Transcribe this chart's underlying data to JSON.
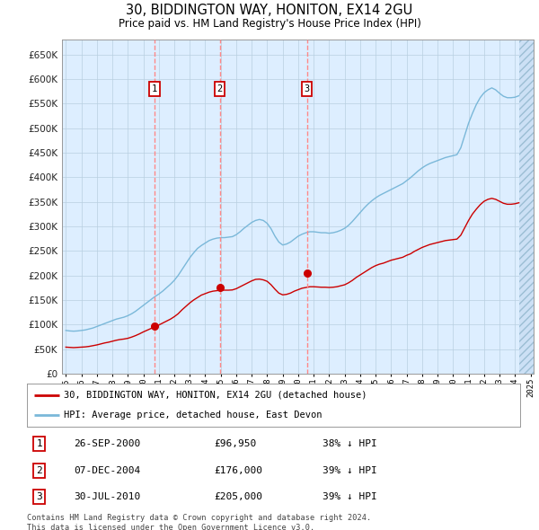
{
  "title": "30, BIDDINGTON WAY, HONITON, EX14 2GU",
  "subtitle": "Price paid vs. HM Land Registry's House Price Index (HPI)",
  "ylim": [
    0,
    680000
  ],
  "yticks": [
    0,
    50000,
    100000,
    150000,
    200000,
    250000,
    300000,
    350000,
    400000,
    450000,
    500000,
    550000,
    600000,
    650000
  ],
  "hpi_color": "#7ab8d9",
  "price_color": "#cc0000",
  "grid_color": "#b8cfe0",
  "bg_color": "#ddeeff",
  "transactions": [
    {
      "num": 1,
      "date_str": "26-SEP-2000",
      "price": 96950,
      "year": 2000.73,
      "label": "26-SEP-2000",
      "price_label": "£96,950",
      "pct": "38% ↓ HPI"
    },
    {
      "num": 2,
      "date_str": "07-DEC-2004",
      "price": 176000,
      "year": 2004.93,
      "label": "07-DEC-2004",
      "price_label": "£176,000",
      "pct": "39% ↓ HPI"
    },
    {
      "num": 3,
      "date_str": "30-JUL-2010",
      "price": 205000,
      "year": 2010.57,
      "label": "30-JUL-2010",
      "price_label": "£205,000",
      "pct": "39% ↓ HPI"
    }
  ],
  "hpi_x": [
    1995.0,
    1995.25,
    1995.5,
    1995.75,
    1996.0,
    1996.25,
    1996.5,
    1996.75,
    1997.0,
    1997.25,
    1997.5,
    1997.75,
    1998.0,
    1998.25,
    1998.5,
    1998.75,
    1999.0,
    1999.25,
    1999.5,
    1999.75,
    2000.0,
    2000.25,
    2000.5,
    2000.75,
    2001.0,
    2001.25,
    2001.5,
    2001.75,
    2002.0,
    2002.25,
    2002.5,
    2002.75,
    2003.0,
    2003.25,
    2003.5,
    2003.75,
    2004.0,
    2004.25,
    2004.5,
    2004.75,
    2005.0,
    2005.25,
    2005.5,
    2005.75,
    2006.0,
    2006.25,
    2006.5,
    2006.75,
    2007.0,
    2007.25,
    2007.5,
    2007.75,
    2008.0,
    2008.25,
    2008.5,
    2008.75,
    2009.0,
    2009.25,
    2009.5,
    2009.75,
    2010.0,
    2010.25,
    2010.5,
    2010.75,
    2011.0,
    2011.25,
    2011.5,
    2011.75,
    2012.0,
    2012.25,
    2012.5,
    2012.75,
    2013.0,
    2013.25,
    2013.5,
    2013.75,
    2014.0,
    2014.25,
    2014.5,
    2014.75,
    2015.0,
    2015.25,
    2015.5,
    2015.75,
    2016.0,
    2016.25,
    2016.5,
    2016.75,
    2017.0,
    2017.25,
    2017.5,
    2017.75,
    2018.0,
    2018.25,
    2018.5,
    2018.75,
    2019.0,
    2019.25,
    2019.5,
    2019.75,
    2020.0,
    2020.25,
    2020.5,
    2020.75,
    2021.0,
    2021.25,
    2021.5,
    2021.75,
    2022.0,
    2022.25,
    2022.5,
    2022.75,
    2023.0,
    2023.25,
    2023.5,
    2023.75,
    2024.0,
    2024.25
  ],
  "hpi_y": [
    88000,
    87000,
    86500,
    87000,
    88000,
    89000,
    91000,
    93000,
    96000,
    99000,
    102000,
    105000,
    108000,
    111000,
    113000,
    115000,
    118000,
    122000,
    127000,
    133000,
    139000,
    145000,
    151000,
    157000,
    162000,
    168000,
    175000,
    182000,
    190000,
    200000,
    212000,
    224000,
    236000,
    246000,
    255000,
    261000,
    266000,
    271000,
    274000,
    276000,
    277000,
    277000,
    278000,
    279000,
    283000,
    289000,
    296000,
    302000,
    308000,
    312000,
    314000,
    312000,
    306000,
    295000,
    280000,
    268000,
    262000,
    264000,
    268000,
    274000,
    280000,
    284000,
    287000,
    289000,
    289000,
    288000,
    287000,
    287000,
    286000,
    287000,
    289000,
    292000,
    296000,
    302000,
    310000,
    319000,
    328000,
    337000,
    345000,
    352000,
    358000,
    363000,
    367000,
    371000,
    375000,
    379000,
    383000,
    387000,
    393000,
    399000,
    406000,
    413000,
    419000,
    424000,
    428000,
    431000,
    434000,
    437000,
    440000,
    442000,
    444000,
    446000,
    460000,
    485000,
    510000,
    530000,
    548000,
    562000,
    572000,
    578000,
    582000,
    578000,
    571000,
    565000,
    562000,
    562000,
    563000,
    566000
  ],
  "red_x": [
    1995.0,
    1995.25,
    1995.5,
    1995.75,
    1996.0,
    1996.25,
    1996.5,
    1996.75,
    1997.0,
    1997.25,
    1997.5,
    1997.75,
    1998.0,
    1998.25,
    1998.5,
    1998.75,
    1999.0,
    1999.25,
    1999.5,
    1999.75,
    2000.0,
    2000.25,
    2000.5,
    2000.75,
    2001.0,
    2001.25,
    2001.5,
    2001.75,
    2002.0,
    2002.25,
    2002.5,
    2002.75,
    2003.0,
    2003.25,
    2003.5,
    2003.75,
    2004.0,
    2004.25,
    2004.5,
    2004.75,
    2005.0,
    2005.25,
    2005.5,
    2005.75,
    2006.0,
    2006.25,
    2006.5,
    2006.75,
    2007.0,
    2007.25,
    2007.5,
    2007.75,
    2008.0,
    2008.25,
    2008.5,
    2008.75,
    2009.0,
    2009.25,
    2009.5,
    2009.75,
    2010.0,
    2010.25,
    2010.5,
    2010.75,
    2011.0,
    2011.25,
    2011.5,
    2011.75,
    2012.0,
    2012.25,
    2012.5,
    2012.75,
    2013.0,
    2013.25,
    2013.5,
    2013.75,
    2014.0,
    2014.25,
    2014.5,
    2014.75,
    2015.0,
    2015.25,
    2015.5,
    2015.75,
    2016.0,
    2016.25,
    2016.5,
    2016.75,
    2017.0,
    2017.25,
    2017.5,
    2017.75,
    2018.0,
    2018.25,
    2018.5,
    2018.75,
    2019.0,
    2019.25,
    2019.5,
    2019.75,
    2020.0,
    2020.25,
    2020.5,
    2020.75,
    2021.0,
    2021.25,
    2021.5,
    2021.75,
    2022.0,
    2022.25,
    2022.5,
    2022.75,
    2023.0,
    2023.25,
    2023.5,
    2023.75,
    2024.0,
    2024.25
  ],
  "red_y": [
    54000,
    53500,
    53000,
    53500,
    54000,
    54500,
    55500,
    57000,
    58500,
    60500,
    62500,
    64000,
    66000,
    68000,
    69500,
    70500,
    72000,
    74500,
    77500,
    81000,
    85000,
    88500,
    92000,
    96000,
    99000,
    103000,
    107000,
    111000,
    116000,
    122000,
    130000,
    137000,
    144000,
    150000,
    155000,
    160000,
    163000,
    166000,
    168000,
    169000,
    170000,
    170000,
    170000,
    170500,
    173000,
    177000,
    181000,
    185000,
    189000,
    192000,
    192500,
    191000,
    188000,
    181000,
    172000,
    164000,
    160500,
    161500,
    164000,
    168000,
    171000,
    174000,
    175500,
    177000,
    177000,
    176500,
    176000,
    176000,
    175500,
    176000,
    177000,
    179000,
    181000,
    185000,
    190000,
    196000,
    201000,
    206000,
    211000,
    216000,
    220000,
    223000,
    225000,
    228000,
    231000,
    233000,
    235000,
    237000,
    241000,
    244000,
    249000,
    253000,
    257000,
    260000,
    263000,
    265000,
    267000,
    269000,
    271000,
    272000,
    273000,
    274000,
    282000,
    297000,
    312000,
    325000,
    335000,
    344000,
    351000,
    355000,
    357000,
    355000,
    351000,
    347000,
    345000,
    345000,
    346000,
    348000
  ],
  "legend_label_red": "30, BIDDINGTON WAY, HONITON, EX14 2GU (detached house)",
  "legend_label_blue": "HPI: Average price, detached house, East Devon",
  "footer": "Contains HM Land Registry data © Crown copyright and database right 2024.\nThis data is licensed under the Open Government Licence v3.0.",
  "marker_box_color": "#cc0000",
  "vline_color": "#ff8888",
  "xlim": [
    1994.75,
    2025.2
  ]
}
